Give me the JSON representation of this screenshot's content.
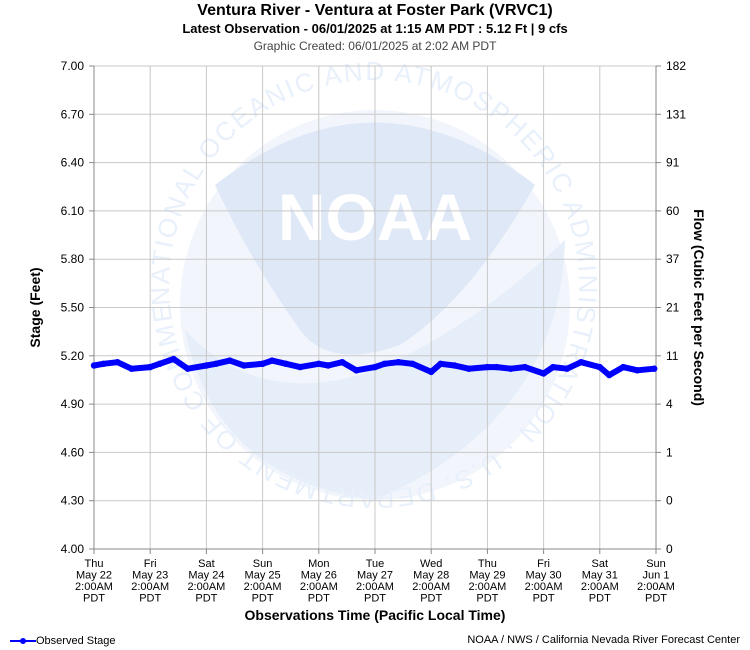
{
  "header": {
    "title": "Ventura River - Ventura at Foster Park (VRVC1)",
    "latest": "Latest Observation - 06/01/2025 at 1:15 AM PDT : 5.12 Ft | 9 cfs",
    "created": "Graphic Created: 06/01/2025 at 2:02 AM PDT"
  },
  "footer": {
    "legend_label": "Observed Stage",
    "credit": "NOAA / NWS / California Nevada River Forecast Center"
  },
  "watermark": {
    "logo_text": "NOAA",
    "ring_text": "NATIONAL OCEANIC AND ATMOSPHERIC ADMINISTRATION · U.S. DEPARTMENT OF COMMERCE"
  },
  "colors": {
    "series": "#0000ff",
    "grid": "#c8c8c8",
    "watermark": "#e8f0fb"
  },
  "chart_data": {
    "type": "line",
    "title": "Ventura River - Ventura at Foster Park (VRVC1)",
    "xlabel": "Observations Time (Pacific Local Time)",
    "ylabel": "Stage (Feet)",
    "y2label": "Flow (Cubic Feet per Second)",
    "ylim": [
      4.0,
      7.0
    ],
    "y_ticks": [
      "7.00",
      "6.70",
      "6.40",
      "6.10",
      "5.80",
      "5.50",
      "5.20",
      "4.90",
      "4.60",
      "4.30",
      "4.00"
    ],
    "y2_ticks": [
      "182",
      "131",
      "91",
      "60",
      "37",
      "21",
      "11",
      "4",
      "1",
      "0",
      "0"
    ],
    "x_ticks": [
      [
        "Thu",
        "May 22",
        "2:00AM",
        "PDT"
      ],
      [
        "Fri",
        "May 23",
        "2:00AM",
        "PDT"
      ],
      [
        "Sat",
        "May 24",
        "2:00AM",
        "PDT"
      ],
      [
        "Sun",
        "May 25",
        "2:00AM",
        "PDT"
      ],
      [
        "Mon",
        "May 26",
        "2:00AM",
        "PDT"
      ],
      [
        "Tue",
        "May 27",
        "2:00AM",
        "PDT"
      ],
      [
        "Wed",
        "May 28",
        "2:00AM",
        "PDT"
      ],
      [
        "Thu",
        "May 29",
        "2:00AM",
        "PDT"
      ],
      [
        "Fri",
        "May 30",
        "2:00AM",
        "PDT"
      ],
      [
        "Sat",
        "May 31",
        "2:00AM",
        "PDT"
      ],
      [
        "Sun",
        "Jun 1",
        "2:00AM",
        "PDT"
      ]
    ],
    "grid": true,
    "legend_position": "bottom-left",
    "series": [
      {
        "name": "Observed Stage",
        "x": [
          "05/22 02:00",
          "05/22 06:00",
          "05/22 12:00",
          "05/22 18:00",
          "05/23 02:00",
          "05/23 06:00",
          "05/23 12:00",
          "05/23 18:00",
          "05/24 02:00",
          "05/24 06:00",
          "05/24 12:00",
          "05/24 18:00",
          "05/25 02:00",
          "05/25 06:00",
          "05/25 12:00",
          "05/25 18:00",
          "05/26 02:00",
          "05/26 06:00",
          "05/26 12:00",
          "05/26 18:00",
          "05/27 02:00",
          "05/27 06:00",
          "05/27 12:00",
          "05/27 18:00",
          "05/28 02:00",
          "05/28 06:00",
          "05/28 12:00",
          "05/28 18:00",
          "05/29 02:00",
          "05/29 06:00",
          "05/29 12:00",
          "05/29 18:00",
          "05/30 02:00",
          "05/30 06:00",
          "05/30 12:00",
          "05/30 18:00",
          "05/31 02:00",
          "05/31 06:00",
          "05/31 12:00",
          "05/31 18:00",
          "06/01 01:15"
        ],
        "values": [
          5.14,
          5.15,
          5.16,
          5.12,
          5.13,
          5.15,
          5.18,
          5.12,
          5.14,
          5.15,
          5.17,
          5.14,
          5.15,
          5.17,
          5.15,
          5.13,
          5.15,
          5.14,
          5.16,
          5.11,
          5.13,
          5.15,
          5.16,
          5.15,
          5.1,
          5.15,
          5.14,
          5.12,
          5.13,
          5.13,
          5.12,
          5.13,
          5.09,
          5.13,
          5.12,
          5.16,
          5.13,
          5.08,
          5.13,
          5.11,
          5.12
        ]
      }
    ]
  }
}
